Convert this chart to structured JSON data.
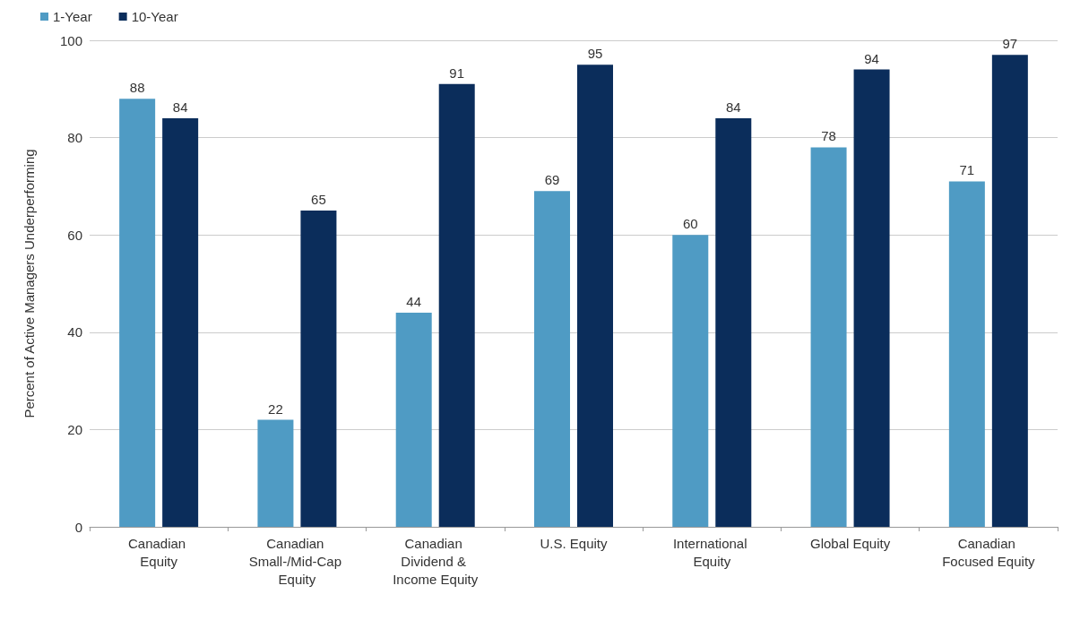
{
  "chart_data": {
    "type": "bar",
    "ylabel": "Percent of Active Managers Underperforming",
    "categories": [
      "Canadian Equity",
      "Canadian Small-/Mid-Cap Equity",
      "Canadian Dividend & Income Equity",
      "U.S. Equity",
      "International Equity",
      "Global Equity",
      "Canadian Focused Equity"
    ],
    "series": [
      {
        "name": "1-Year",
        "color": "#4f9bc4",
        "values": [
          88,
          22,
          44,
          69,
          60,
          78,
          71
        ]
      },
      {
        "name": "10-Year",
        "color": "#0b2d5b",
        "values": [
          84,
          65,
          91,
          95,
          84,
          94,
          97
        ]
      }
    ],
    "ylim": [
      0,
      100
    ],
    "yticks": [
      0,
      20,
      40,
      60,
      80,
      100
    ],
    "grid": "y",
    "legend": "top left",
    "data_labels": true
  }
}
